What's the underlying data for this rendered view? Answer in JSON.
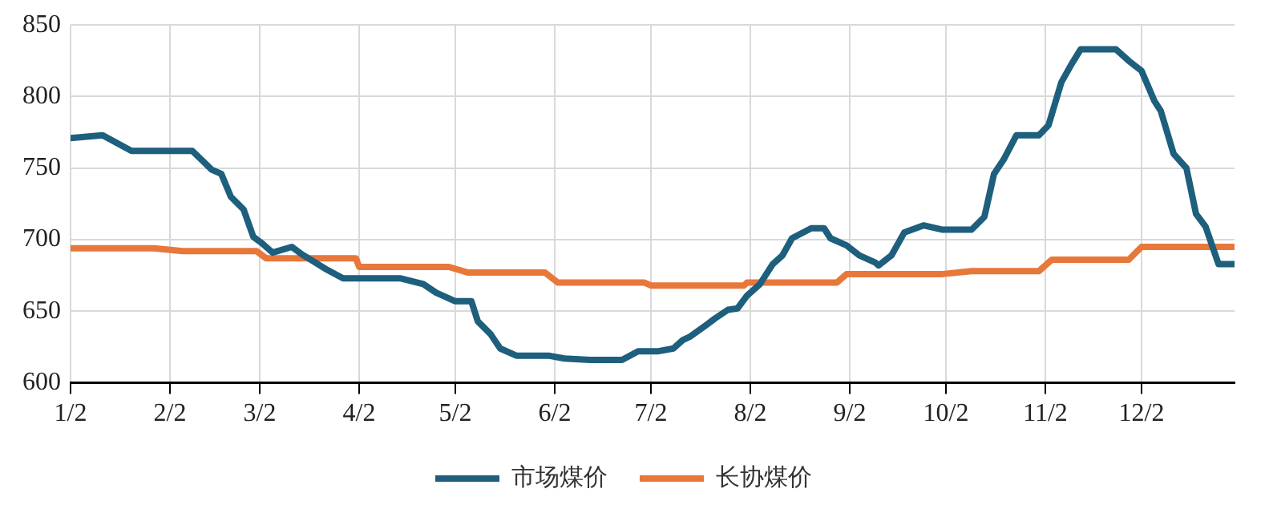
{
  "chart_data": {
    "type": "line",
    "x": [
      "--01-02",
      "--01-12",
      "--01-21",
      "--02-09",
      "--02-15",
      "--02-18",
      "--02-21",
      "--02-25",
      "--02-28",
      "--03-03",
      "--03-06",
      "--03-12",
      "--03-15",
      "--03-23",
      "--03-28",
      "--04-15",
      "--04-22",
      "--04-26",
      "--05-02",
      "--05-07",
      "--05-09",
      "--05-13",
      "--05-16",
      "--05-21",
      "--05-31",
      "--06-05",
      "--06-13",
      "--06-23",
      "--06-28",
      "--07-04",
      "--07-09",
      "--07-12",
      "--07-14",
      "--07-19",
      "--07-22",
      "--07-26",
      "--07-29",
      "--08-01",
      "--08-05",
      "--08-09",
      "--08-12",
      "--08-15",
      "--08-21",
      "--08-25",
      "--08-27",
      "--08-31",
      "--09-01",
      "--09-05",
      "--09-10",
      "--09-11",
      "--09-15",
      "--09-19",
      "--09-25",
      "--10-01",
      "--10-10",
      "--10-14",
      "--10-17",
      "--10-20",
      "--10-24",
      "--10-31",
      "--11-03",
      "--11-07",
      "--11-10",
      "--11-13",
      "--11-24",
      "--11-28",
      "--12-02",
      "--12-06",
      "--12-08",
      "--12-12",
      "--12-16",
      "--12-19",
      "--12-22",
      "--12-26",
      "--12-31"
    ],
    "series": [
      {
        "name": "市场煤价",
        "color": "#1d5f7d",
        "values": [
          771,
          773,
          762,
          762,
          749,
          746,
          730,
          721,
          702,
          697,
          691,
          695,
          690,
          679,
          673,
          673,
          669,
          663,
          657,
          657,
          643,
          634,
          624,
          619,
          619,
          617,
          616,
          616,
          622,
          622,
          624,
          630,
          632,
          640,
          645,
          651,
          652,
          661,
          669,
          683,
          689,
          701,
          708,
          708,
          701,
          697,
          696,
          689,
          684,
          682,
          689,
          705,
          710,
          707,
          707,
          716,
          746,
          756,
          773,
          773,
          780,
          810,
          822,
          833,
          833,
          825,
          818,
          797,
          790,
          760,
          750,
          718,
          709,
          683,
          683
        ]
      },
      {
        "name": "长协煤价",
        "color": "#e8773a",
        "x": [
          "--01-02",
          "--01-28",
          "--02-06",
          "--03-01",
          "--03-04",
          "--04-01",
          "--04-02",
          "--04-30",
          "--05-06",
          "--05-30",
          "--06-03",
          "--06-30",
          "--07-02",
          "--07-31",
          "--08-01",
          "--08-29",
          "--09-01",
          "--10-01",
          "--10-10",
          "--10-31",
          "--11-04",
          "--11-28",
          "--12-02",
          "--12-31"
        ],
        "values": [
          694,
          694,
          692,
          692,
          687,
          687,
          681,
          681,
          677,
          677,
          670,
          670,
          668,
          668,
          670,
          670,
          676,
          676,
          678,
          678,
          686,
          686,
          695,
          695
        ]
      }
    ],
    "xlim": [
      "--01-02",
      "--12-31"
    ],
    "xticks": [
      {
        "value": "--01-02",
        "label": "1/2"
      },
      {
        "value": "--02-02",
        "label": "2/2"
      },
      {
        "value": "--03-02",
        "label": "3/2"
      },
      {
        "value": "--04-02",
        "label": "4/2"
      },
      {
        "value": "--05-02",
        "label": "5/2"
      },
      {
        "value": "--06-02",
        "label": "6/2"
      },
      {
        "value": "--07-02",
        "label": "7/2"
      },
      {
        "value": "--08-02",
        "label": "8/2"
      },
      {
        "value": "--09-02",
        "label": "9/2"
      },
      {
        "value": "--10-02",
        "label": "10/2"
      },
      {
        "value": "--11-02",
        "label": "11/2"
      },
      {
        "value": "--12-02",
        "label": "12/2"
      }
    ],
    "ylim": [
      600,
      850
    ],
    "yticks": [
      600,
      650,
      700,
      750,
      800,
      850
    ],
    "grid": true,
    "legend": "bottom",
    "marker": "none",
    "line_style": "solid"
  }
}
